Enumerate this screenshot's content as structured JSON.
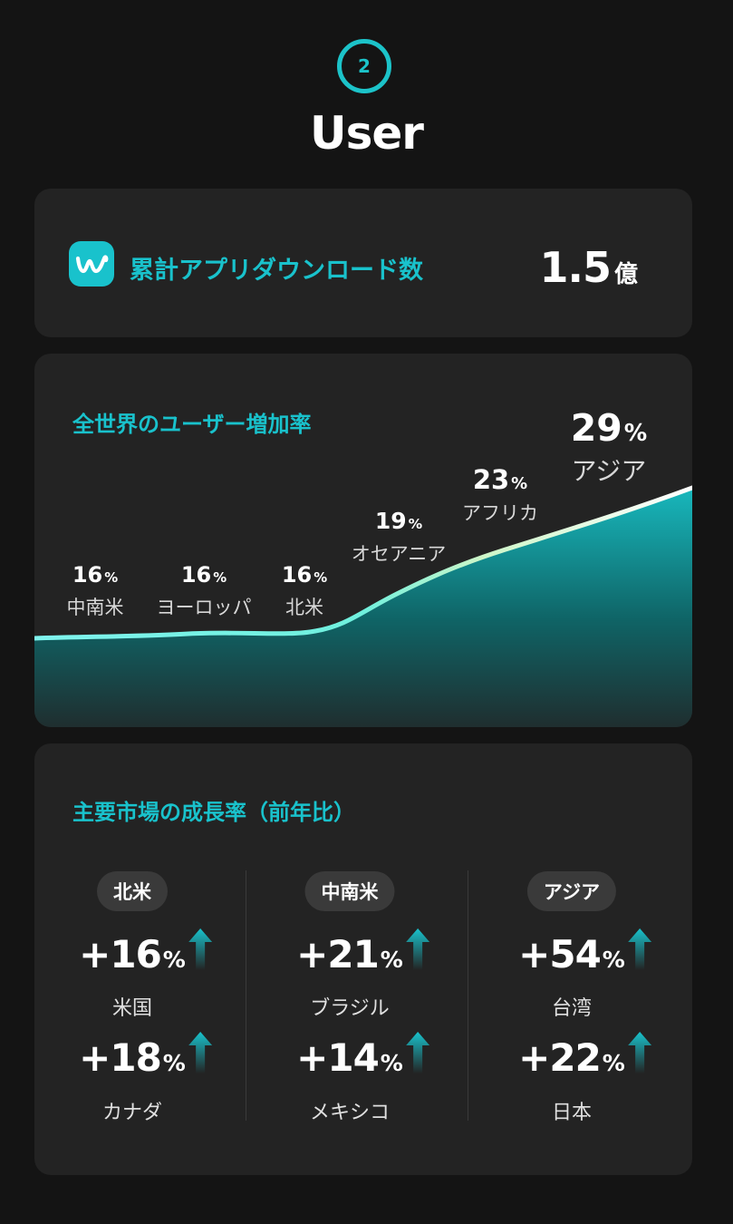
{
  "header": {
    "step_number": "2",
    "title": "User"
  },
  "downloads": {
    "label": "累計アプリダウンロード数",
    "value": "1.5",
    "unit": "億"
  },
  "growth": {
    "heading": "全世界のユーザー増加率",
    "percent_symbol": "%",
    "regions": [
      {
        "pct": "16",
        "name": "中南米"
      },
      {
        "pct": "16",
        "name": "ヨーロッパ"
      },
      {
        "pct": "16",
        "name": "北米"
      },
      {
        "pct": "19",
        "name": "オセアニア"
      },
      {
        "pct": "23",
        "name": "アフリカ"
      },
      {
        "pct": "29",
        "name": "アジア"
      }
    ]
  },
  "markets": {
    "heading": "主要市場の成長率（前年比）",
    "percent_symbol": "%",
    "columns": [
      {
        "region": "北米",
        "items": [
          {
            "value": "+16",
            "country": "米国"
          },
          {
            "value": "+18",
            "country": "カナダ"
          }
        ]
      },
      {
        "region": "中南米",
        "items": [
          {
            "value": "+21",
            "country": "ブラジル"
          },
          {
            "value": "+14",
            "country": "メキシコ"
          }
        ]
      },
      {
        "region": "アジア",
        "items": [
          {
            "value": "+54",
            "country": "台湾"
          },
          {
            "value": "+22",
            "country": "日本"
          }
        ]
      }
    ]
  },
  "colors": {
    "accent": "#19c2cc",
    "background": "#141414",
    "card": "#232323",
    "pill": "#3a3a3a"
  },
  "icons": {
    "app_logo": "w-logo-icon",
    "trend": "up-arrow-icon"
  }
}
